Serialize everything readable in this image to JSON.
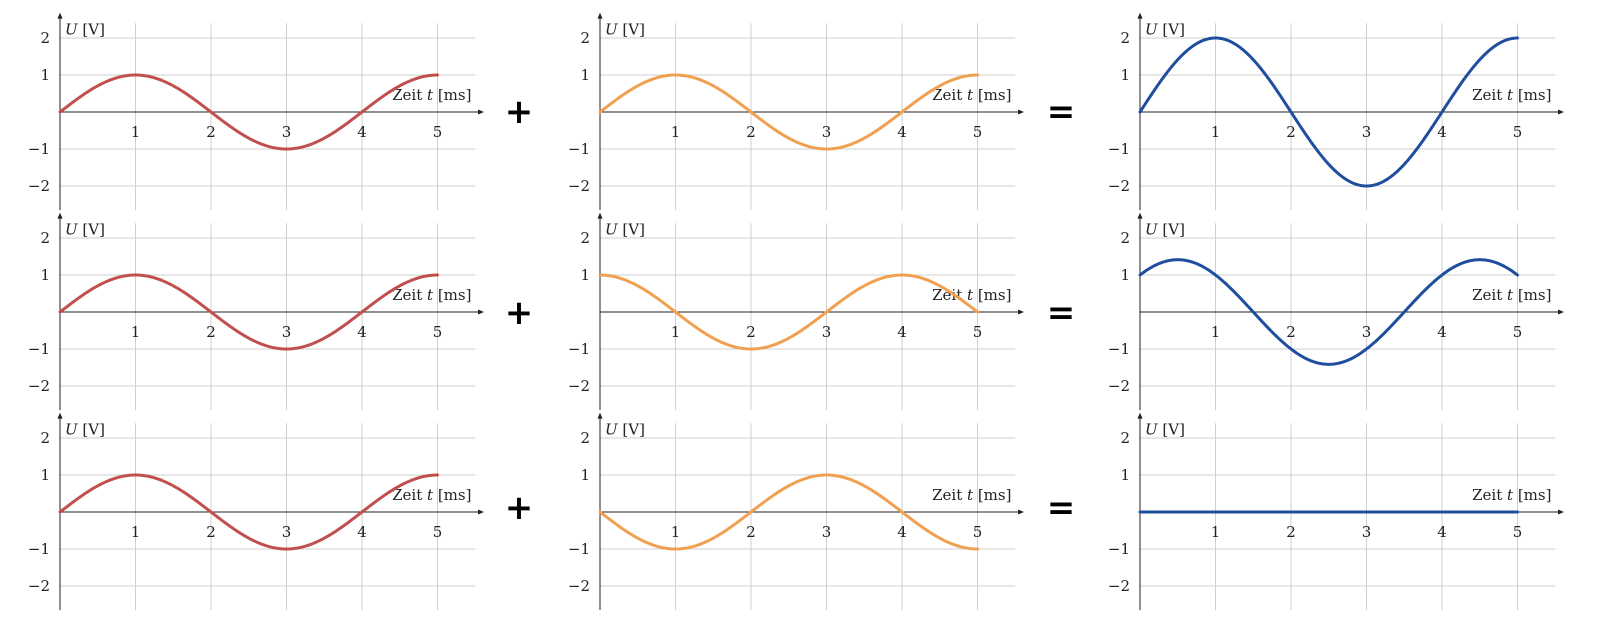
{
  "operators": {
    "plus": "+",
    "equals": "="
  },
  "chart_data": [
    {
      "type": "line",
      "row": 0,
      "col": 0,
      "ylabel": "U",
      "ylabel_unit": "[V]",
      "xlabel": "Zeit",
      "xlabel_var": "t",
      "xlabel_unit": "[ms]",
      "xlim": [
        0,
        5
      ],
      "ylim": [
        -2,
        2
      ],
      "x_ticks": [
        "1",
        "2",
        "3",
        "4",
        "5"
      ],
      "y_ticks": [
        "2",
        "1",
        "−1",
        "−2"
      ],
      "color": "#c0504d",
      "series": [
        {
          "function": "sin",
          "amplitude": 1,
          "period_ms": 4,
          "phase_deg": 0,
          "x": [
            0,
            1,
            2,
            3,
            4,
            5
          ],
          "values": [
            0,
            1,
            0,
            -1,
            0,
            1
          ]
        }
      ]
    },
    {
      "type": "line",
      "row": 0,
      "col": 1,
      "ylabel": "U",
      "ylabel_unit": "[V]",
      "xlabel": "Zeit",
      "xlabel_var": "t",
      "xlabel_unit": "[ms]",
      "xlim": [
        0,
        5
      ],
      "ylim": [
        -2,
        2
      ],
      "x_ticks": [
        "1",
        "2",
        "3",
        "4",
        "5"
      ],
      "y_ticks": [
        "2",
        "1",
        "−1",
        "−2"
      ],
      "color": "#f0a050",
      "series": [
        {
          "function": "sin",
          "amplitude": 1,
          "period_ms": 4,
          "phase_deg": 0,
          "x": [
            0,
            1,
            2,
            3,
            4,
            5
          ],
          "values": [
            0,
            1,
            0,
            -1,
            0,
            1
          ]
        }
      ]
    },
    {
      "type": "line",
      "row": 0,
      "col": 2,
      "ylabel": "U",
      "ylabel_unit": "[V]",
      "xlabel": "Zeit",
      "xlabel_var": "t",
      "xlabel_unit": "[ms]",
      "xlim": [
        0,
        5
      ],
      "ylim": [
        -2,
        2
      ],
      "x_ticks": [
        "1",
        "2",
        "3",
        "4",
        "5"
      ],
      "y_ticks": [
        "2",
        "1",
        "−1",
        "−2"
      ],
      "color": "#1f4e9e",
      "series": [
        {
          "function": "sin",
          "amplitude": 2,
          "period_ms": 4,
          "phase_deg": 0,
          "x": [
            0,
            1,
            2,
            3,
            4,
            5
          ],
          "values": [
            0,
            2,
            0,
            -2,
            0,
            2
          ]
        }
      ]
    },
    {
      "type": "line",
      "row": 1,
      "col": 0,
      "ylabel": "U",
      "ylabel_unit": "[V]",
      "xlabel": "Zeit",
      "xlabel_var": "t",
      "xlabel_unit": "[ms]",
      "xlim": [
        0,
        5
      ],
      "ylim": [
        -2,
        2
      ],
      "x_ticks": [
        "1",
        "2",
        "3",
        "4",
        "5"
      ],
      "y_ticks": [
        "2",
        "1",
        "−1",
        "−2"
      ],
      "color": "#c0504d",
      "series": [
        {
          "function": "sin",
          "amplitude": 1,
          "period_ms": 4,
          "phase_deg": 0,
          "x": [
            0,
            1,
            2,
            3,
            4,
            5
          ],
          "values": [
            0,
            1,
            0,
            -1,
            0,
            1
          ]
        }
      ]
    },
    {
      "type": "line",
      "row": 1,
      "col": 1,
      "ylabel": "U",
      "ylabel_unit": "[V]",
      "xlabel": "Zeit",
      "xlabel_var": "t",
      "xlabel_unit": "[ms]",
      "xlim": [
        0,
        5
      ],
      "ylim": [
        -2,
        2
      ],
      "x_ticks": [
        "1",
        "2",
        "3",
        "4",
        "5"
      ],
      "y_ticks": [
        "2",
        "1",
        "−1",
        "−2"
      ],
      "color": "#f0a050",
      "series": [
        {
          "function": "sin",
          "amplitude": 1,
          "period_ms": 4,
          "phase_deg": 90,
          "x": [
            0,
            1,
            2,
            3,
            4,
            5
          ],
          "values": [
            1,
            0,
            -1,
            0,
            1,
            0
          ]
        }
      ]
    },
    {
      "type": "line",
      "row": 1,
      "col": 2,
      "ylabel": "U",
      "ylabel_unit": "[V]",
      "xlabel": "Zeit",
      "xlabel_var": "t",
      "xlabel_unit": "[ms]",
      "xlim": [
        0,
        5
      ],
      "ylim": [
        -2,
        2
      ],
      "x_ticks": [
        "1",
        "2",
        "3",
        "4",
        "5"
      ],
      "y_ticks": [
        "2",
        "1",
        "−1",
        "−2"
      ],
      "color": "#1f4e9e",
      "series": [
        {
          "function": "sin",
          "amplitude": 1.414,
          "period_ms": 4,
          "phase_deg": 45,
          "x": [
            0,
            1,
            2,
            3,
            4,
            5
          ],
          "values": [
            1,
            1,
            -1,
            -1,
            1,
            1
          ]
        }
      ]
    },
    {
      "type": "line",
      "row": 2,
      "col": 0,
      "ylabel": "U",
      "ylabel_unit": "[V]",
      "xlabel": "Zeit",
      "xlabel_var": "t",
      "xlabel_unit": "[ms]",
      "xlim": [
        0,
        5
      ],
      "ylim": [
        -2,
        2
      ],
      "x_ticks": [
        "1",
        "2",
        "3",
        "4",
        "5"
      ],
      "y_ticks": [
        "2",
        "1",
        "−1",
        "−2"
      ],
      "color": "#c0504d",
      "series": [
        {
          "function": "sin",
          "amplitude": 1,
          "period_ms": 4,
          "phase_deg": 0,
          "x": [
            0,
            1,
            2,
            3,
            4,
            5
          ],
          "values": [
            0,
            1,
            0,
            -1,
            0,
            1
          ]
        }
      ]
    },
    {
      "type": "line",
      "row": 2,
      "col": 1,
      "ylabel": "U",
      "ylabel_unit": "[V]",
      "xlabel": "Zeit",
      "xlabel_var": "t",
      "xlabel_unit": "[ms]",
      "xlim": [
        0,
        5
      ],
      "ylim": [
        -2,
        2
      ],
      "x_ticks": [
        "1",
        "2",
        "3",
        "4",
        "5"
      ],
      "y_ticks": [
        "2",
        "1",
        "−1",
        "−2"
      ],
      "color": "#f0a050",
      "series": [
        {
          "function": "sin",
          "amplitude": 1,
          "period_ms": 4,
          "phase_deg": 180,
          "x": [
            0,
            1,
            2,
            3,
            4,
            5
          ],
          "values": [
            0,
            -1,
            0,
            1,
            0,
            -1
          ]
        }
      ]
    },
    {
      "type": "line",
      "row": 2,
      "col": 2,
      "ylabel": "U",
      "ylabel_unit": "[V]",
      "xlabel": "Zeit",
      "xlabel_var": "t",
      "xlabel_unit": "[ms]",
      "xlim": [
        0,
        5
      ],
      "ylim": [
        -2,
        2
      ],
      "x_ticks": [
        "1",
        "2",
        "3",
        "4",
        "5"
      ],
      "y_ticks": [
        "2",
        "1",
        "−1",
        "−2"
      ],
      "color": "#1f4e9e",
      "series": [
        {
          "function": "sin",
          "amplitude": 0,
          "period_ms": 4,
          "phase_deg": 0,
          "x": [
            0,
            1,
            2,
            3,
            4,
            5
          ],
          "values": [
            0,
            0,
            0,
            0,
            0,
            0
          ]
        }
      ]
    }
  ]
}
